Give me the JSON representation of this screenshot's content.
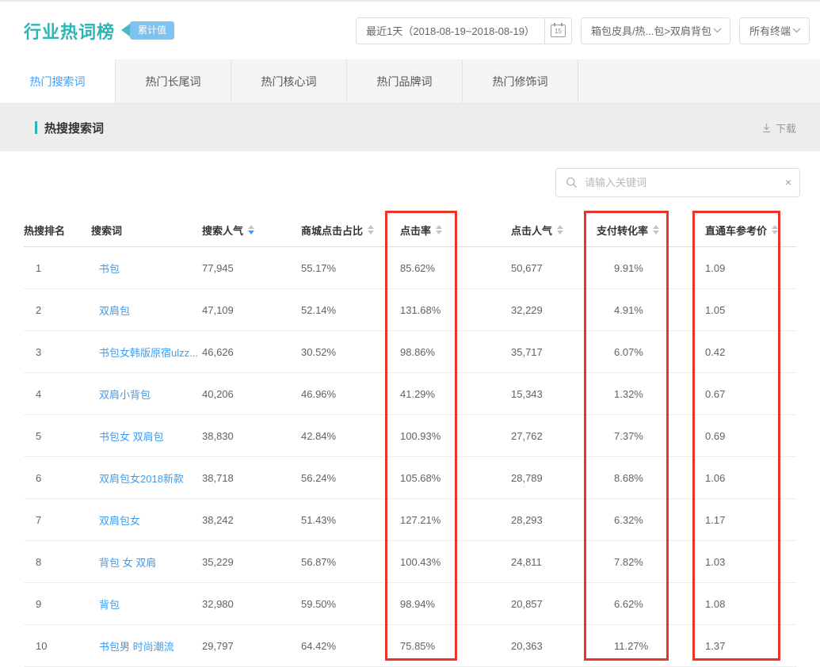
{
  "header": {
    "title": "行业热词榜",
    "badge": "累计值",
    "date_selector": "最近1天（2018-08-19~2018-08-19）",
    "calendar_day": "15",
    "category_selector": "箱包皮具/热...包>双肩背包",
    "terminal_selector": "所有终端"
  },
  "tabs": [
    {
      "label": "热门搜索词",
      "active": true
    },
    {
      "label": "热门长尾词",
      "active": false
    },
    {
      "label": "热门核心词",
      "active": false
    },
    {
      "label": "热门品牌词",
      "active": false
    },
    {
      "label": "热门修饰词",
      "active": false
    }
  ],
  "section": {
    "title": "热搜搜索词",
    "download_label": "下载"
  },
  "search": {
    "placeholder": "请输入关键词",
    "clear_icon": "×"
  },
  "table": {
    "columns": [
      "热搜排名",
      "搜索词",
      "搜索人气",
      "商城点击占比",
      "点击率",
      "点击人气",
      "支付转化率",
      "直通车参考价"
    ],
    "sort": {
      "column": "搜索人气",
      "direction": "desc"
    },
    "rows": [
      {
        "rank": "1",
        "keyword": "书包",
        "search_pop": "77,945",
        "mall_click": "55.17%",
        "ctr": "85.62%",
        "click_pop": "50,677",
        "pay_conv": "9.91%",
        "ztc_price": "1.09"
      },
      {
        "rank": "2",
        "keyword": "双肩包",
        "search_pop": "47,109",
        "mall_click": "52.14%",
        "ctr": "131.68%",
        "click_pop": "32,229",
        "pay_conv": "4.91%",
        "ztc_price": "1.05"
      },
      {
        "rank": "3",
        "keyword": "书包女韩版原宿ulzz...",
        "search_pop": "46,626",
        "mall_click": "30.52%",
        "ctr": "98.86%",
        "click_pop": "35,717",
        "pay_conv": "6.07%",
        "ztc_price": "0.42"
      },
      {
        "rank": "4",
        "keyword": "双肩小背包",
        "search_pop": "40,206",
        "mall_click": "46.96%",
        "ctr": "41.29%",
        "click_pop": "15,343",
        "pay_conv": "1.32%",
        "ztc_price": "0.67"
      },
      {
        "rank": "5",
        "keyword": "书包女 双肩包",
        "search_pop": "38,830",
        "mall_click": "42.84%",
        "ctr": "100.93%",
        "click_pop": "27,762",
        "pay_conv": "7.37%",
        "ztc_price": "0.69"
      },
      {
        "rank": "6",
        "keyword": "双肩包女2018新款",
        "search_pop": "38,718",
        "mall_click": "56.24%",
        "ctr": "105.68%",
        "click_pop": "28,789",
        "pay_conv": "8.68%",
        "ztc_price": "1.06"
      },
      {
        "rank": "7",
        "keyword": "双肩包女",
        "search_pop": "38,242",
        "mall_click": "51.43%",
        "ctr": "127.21%",
        "click_pop": "28,293",
        "pay_conv": "6.32%",
        "ztc_price": "1.17"
      },
      {
        "rank": "8",
        "keyword": "背包 女 双肩",
        "search_pop": "35,229",
        "mall_click": "56.87%",
        "ctr": "100.43%",
        "click_pop": "24,811",
        "pay_conv": "7.82%",
        "ztc_price": "1.03"
      },
      {
        "rank": "9",
        "keyword": "背包",
        "search_pop": "32,980",
        "mall_click": "59.50%",
        "ctr": "98.94%",
        "click_pop": "20,857",
        "pay_conv": "6.62%",
        "ztc_price": "1.08"
      },
      {
        "rank": "10",
        "keyword": "书包男 时尚潮流",
        "search_pop": "29,797",
        "mall_click": "64.42%",
        "ctr": "75.85%",
        "click_pop": "20,363",
        "pay_conv": "11.27%",
        "ztc_price": "1.37"
      }
    ]
  },
  "highlights": {
    "boxed_columns": [
      "点击率",
      "支付转化率",
      "直通车参考价"
    ],
    "box_color": "#e8352c"
  },
  "colors": {
    "accent_teal": "#2cb5b5",
    "badge_blue": "#7ec2f0",
    "link_blue": "#3e9df0",
    "active_tab_blue": "#3d9eff"
  }
}
